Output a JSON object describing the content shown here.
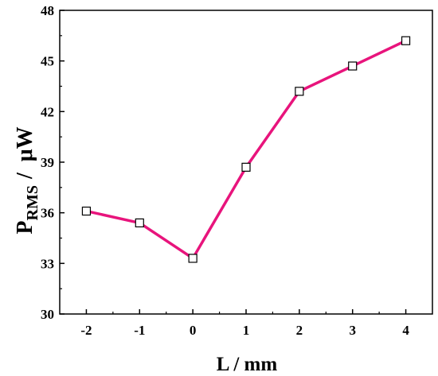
{
  "chart_data": {
    "type": "line",
    "x": [
      -2,
      -1,
      0,
      1,
      2,
      3,
      4
    ],
    "series": [
      {
        "values": [
          36.1,
          35.4,
          33.3,
          38.7,
          43.2,
          44.7,
          46.2
        ]
      }
    ],
    "x_ticks": [
      "-2",
      "-1",
      "0",
      "1",
      "2",
      "3",
      "4"
    ],
    "y_ticks": [
      "30",
      "33",
      "36",
      "39",
      "42",
      "45",
      "48"
    ],
    "xlabel": "L / mm",
    "ylabel": {
      "main": "P",
      "sub": "RMS",
      "unit": "/  μW"
    },
    "xlim": [
      -2.5,
      4.5
    ],
    "ylim": [
      30,
      48
    ],
    "grid": false,
    "line_color": "#e8147c",
    "marker": "open-square"
  }
}
